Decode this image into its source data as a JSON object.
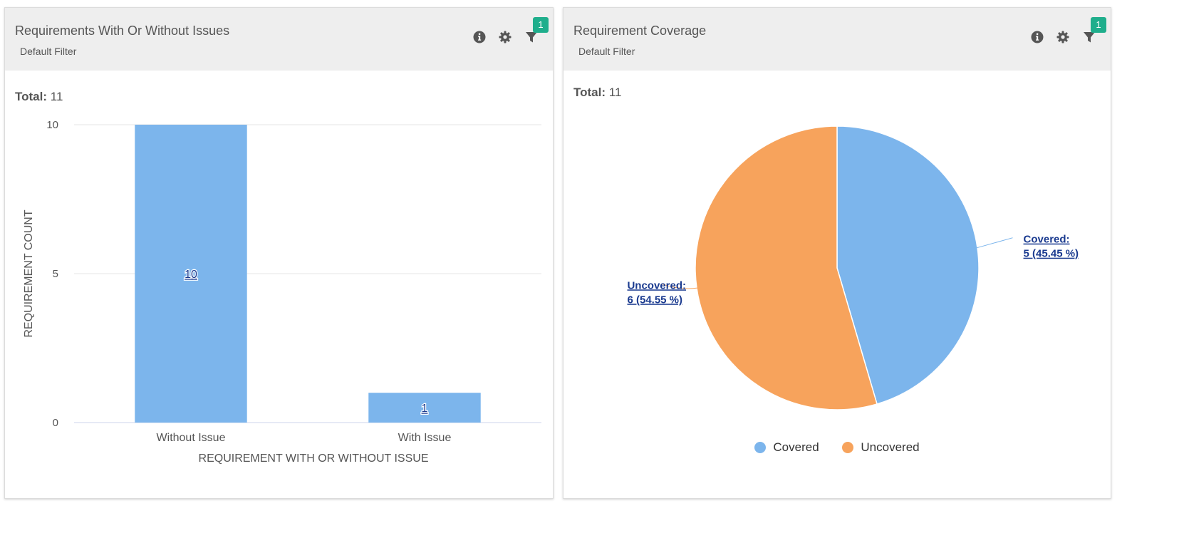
{
  "colors": {
    "covered": "#7cb5ec",
    "uncovered": "#f7a35c",
    "badge": "#1fae8c",
    "label_link": "#1a3a8f"
  },
  "left": {
    "title": "Requirements With Or Without Issues",
    "subtitle": "Default Filter",
    "total_label": "Total:",
    "total_value": "11",
    "filter_count": "1",
    "icons": [
      "info-icon",
      "gear-icon",
      "filter-icon"
    ]
  },
  "right": {
    "title": "Requirement Coverage",
    "subtitle": "Default Filter",
    "total_label": "Total:",
    "total_value": "11",
    "filter_count": "1",
    "icons": [
      "info-icon",
      "gear-icon",
      "filter-icon"
    ],
    "legend": [
      "Covered",
      "Uncovered"
    ]
  },
  "chart_data": [
    {
      "type": "bar",
      "categories": [
        "Without Issue",
        "With Issue"
      ],
      "values": [
        10,
        1
      ],
      "data_labels": [
        "10",
        "1"
      ],
      "xlabel": "REQUIREMENT WITH OR WITHOUT ISSUE",
      "ylabel": "REQUIREMENT COUNT",
      "ylim": [
        0,
        10
      ],
      "yticks": [
        "0",
        "5",
        "10"
      ],
      "grid": true
    },
    {
      "type": "pie",
      "labels": [
        "Covered",
        "Uncovered"
      ],
      "values": [
        5,
        6
      ],
      "percent": [
        45.45,
        54.55
      ],
      "data_labels": [
        [
          "Covered:",
          "5 (45.45 %)"
        ],
        [
          "Uncovered:",
          "6 (54.55 %)"
        ]
      ],
      "legend": "bottom"
    }
  ]
}
